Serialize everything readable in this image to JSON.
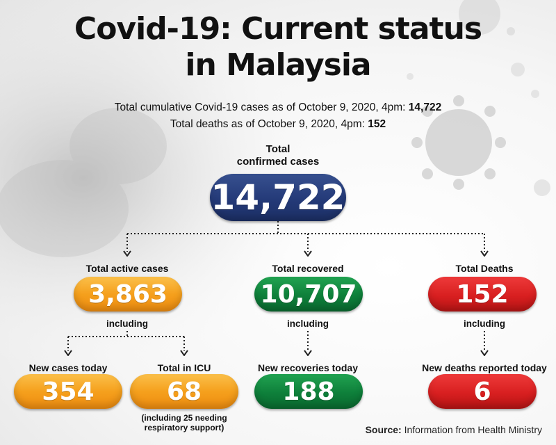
{
  "title": {
    "line1": "Covid-19: Current status",
    "line2": "in Malaysia"
  },
  "summary": {
    "cumulative_text": "Total cumulative Covid-19 cases as of October 9, 2020, 4pm: ",
    "cumulative_value": "14,722",
    "deaths_text": "Total deaths as of October 9, 2020, 4pm: ",
    "deaths_value": "152"
  },
  "total": {
    "label_line1": "Total",
    "label_line2": "confirmed cases",
    "value": "14,722",
    "color": "#243a78"
  },
  "active": {
    "label": "Total active cases",
    "value": "3,863",
    "including": "including",
    "color": "#f5a01d"
  },
  "recovered": {
    "label": "Total recovered",
    "value": "10,707",
    "including": "including",
    "color": "#0e7f3a"
  },
  "deaths": {
    "label": "Total Deaths",
    "value": "152",
    "including": "including",
    "color": "#d81f20"
  },
  "new_cases": {
    "label": "New cases today",
    "value": "354"
  },
  "icu": {
    "label": "Total in ICU",
    "value": "68",
    "note_line1": "(including 25 needing",
    "note_line2": "respiratory support)"
  },
  "new_recoveries": {
    "label": "New recoveries today",
    "value": "188"
  },
  "new_deaths": {
    "label": "New deaths reported today",
    "value": "6"
  },
  "source": {
    "label": "Source:",
    "text": "Information from Health Ministry"
  }
}
